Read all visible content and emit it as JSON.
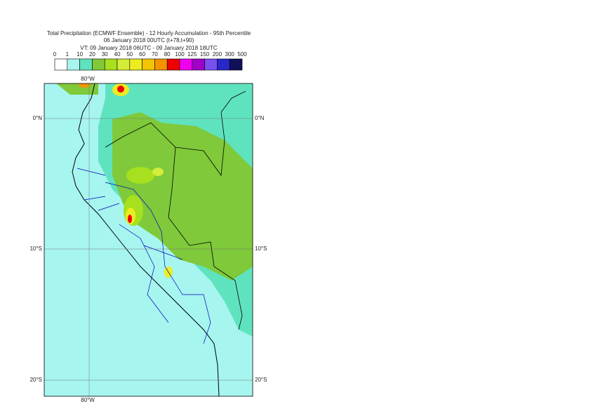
{
  "header": {
    "lines": [
      "Total Precipitation (ECMWF Ensemble) - 12 Hourly Accumulation - 95th Percentile",
      "06 January 2018 00UTC (t+78,t+90)",
      "VT: 09 January 2018 06UTC - 09 January 2018 18UTC"
    ]
  },
  "legend": {
    "labels": [
      "0",
      "1",
      "10",
      "20",
      "30",
      "40",
      "50",
      "60",
      "70",
      "80",
      "100",
      "125",
      "150",
      "200",
      "300",
      "500"
    ],
    "colors": [
      "#ffffff",
      "#a6f5ef",
      "#5fe3be",
      "#7fc93a",
      "#a6e01e",
      "#d4ec3a",
      "#ecec20",
      "#f3c400",
      "#f39400",
      "#f00000",
      "#f000f0",
      "#a000c8",
      "#7850f0",
      "#2828c8",
      "#10105a"
    ]
  },
  "map": {
    "lon_label": "80°W",
    "lat_labels": [
      "0°N",
      "10°S",
      "20°S"
    ]
  }
}
